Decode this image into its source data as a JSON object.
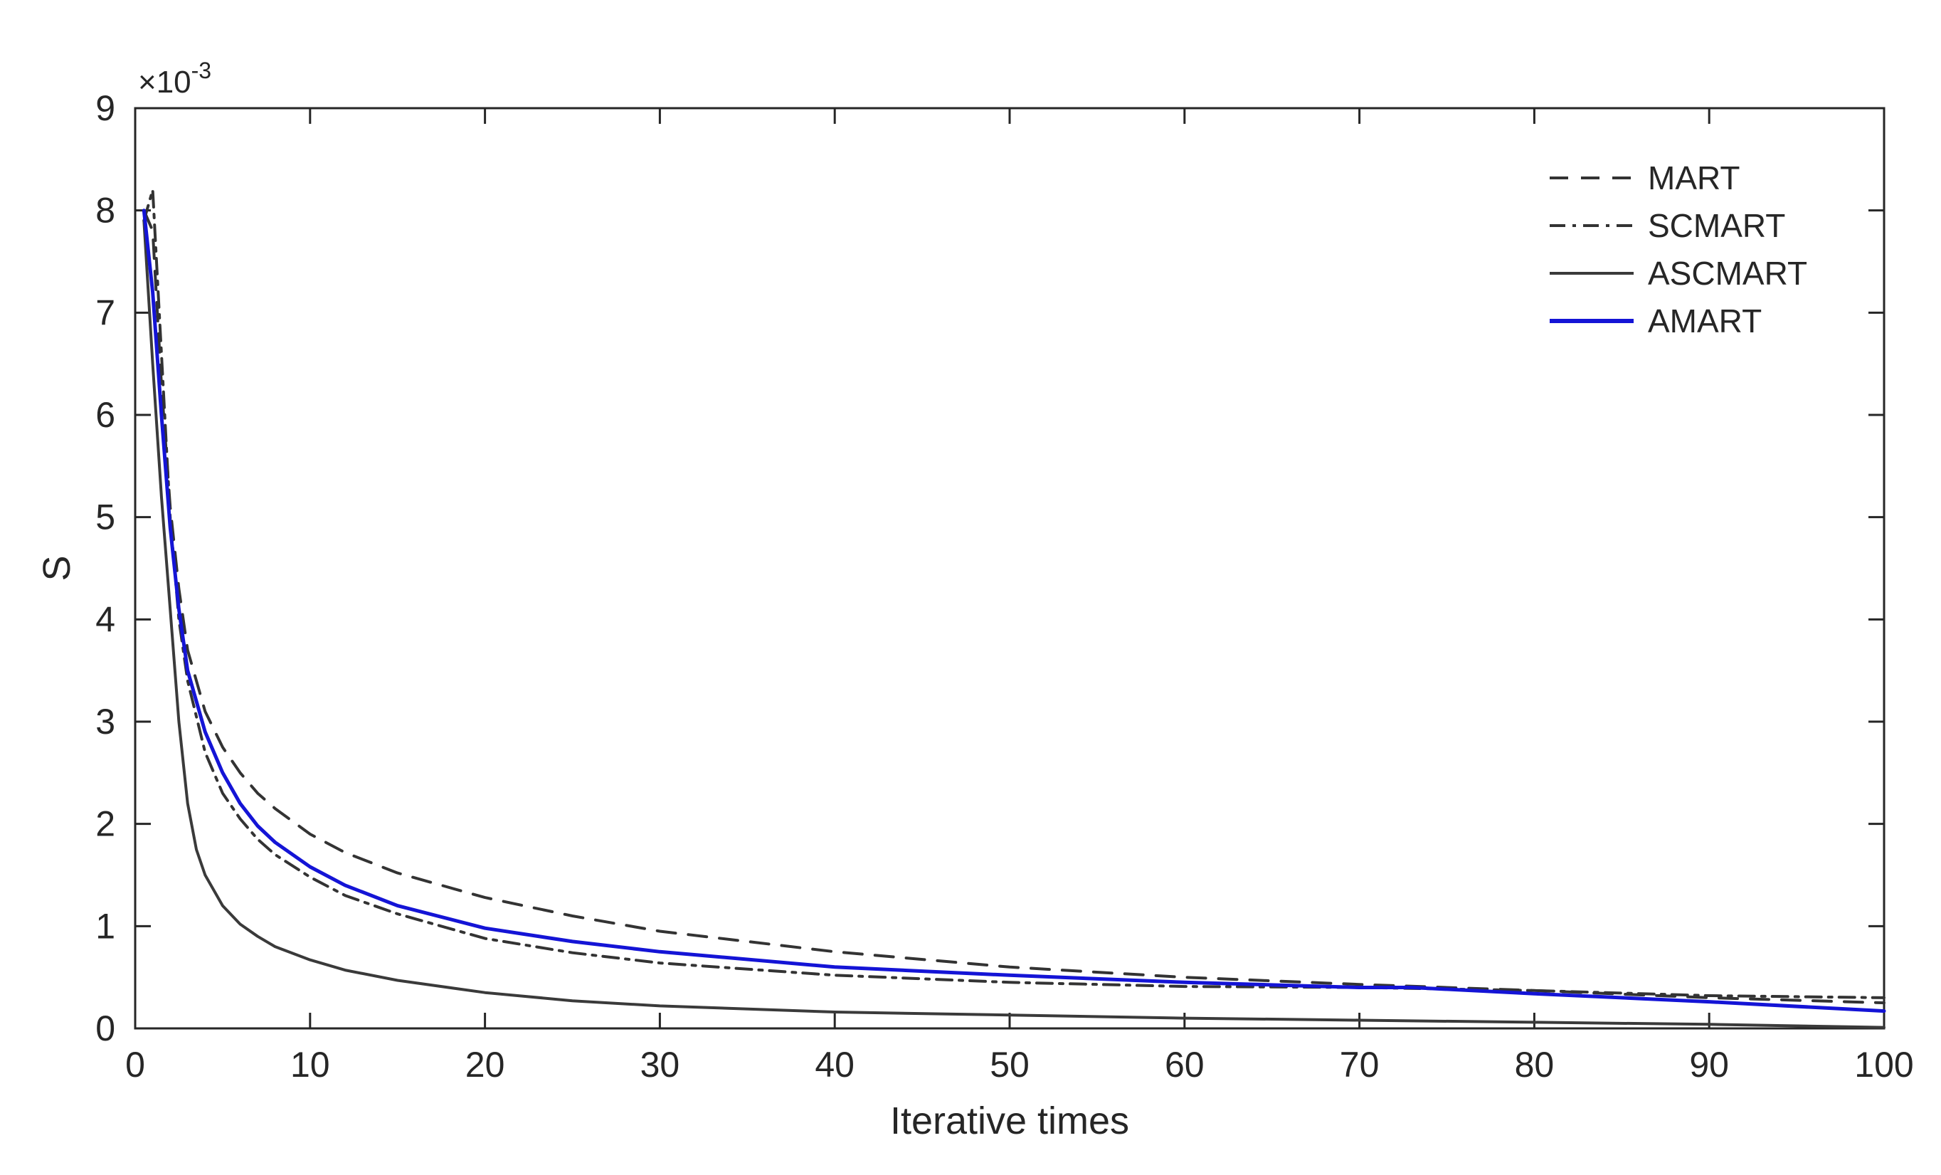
{
  "chart_data": {
    "type": "line",
    "xlabel": "Iterative times",
    "ylabel": "S",
    "y_exponent_label": {
      "base": "×10",
      "power": "-3"
    },
    "xlim": [
      0,
      100
    ],
    "ylim": [
      0,
      9
    ],
    "y_scale_factor": 0.001,
    "grid": false,
    "legend_position": "top-right",
    "xticks": [
      0,
      10,
      20,
      30,
      40,
      50,
      60,
      70,
      80,
      90,
      100
    ],
    "xtick_labels": [
      "0",
      "10",
      "20",
      "30",
      "40",
      "50",
      "60",
      "70",
      "80",
      "90",
      "100"
    ],
    "yticks": [
      0,
      1,
      2,
      3,
      4,
      5,
      6,
      7,
      8,
      9
    ],
    "ytick_labels": [
      "0",
      "1",
      "2",
      "3",
      "4",
      "5",
      "6",
      "7",
      "8",
      "9"
    ],
    "series": [
      {
        "name": "MART",
        "color": "#333333",
        "dash": "dashed",
        "x": [
          0.5,
          1,
          1.5,
          2,
          2.5,
          3,
          4,
          5,
          6,
          7,
          8,
          10,
          12,
          15,
          20,
          25,
          30,
          40,
          50,
          60,
          70,
          80,
          90,
          100
        ],
        "y": [
          8.0,
          7.8,
          6.3,
          5.1,
          4.3,
          3.7,
          3.1,
          2.75,
          2.5,
          2.3,
          2.15,
          1.9,
          1.72,
          1.52,
          1.28,
          1.1,
          0.95,
          0.75,
          0.6,
          0.5,
          0.43,
          0.37,
          0.3,
          0.25
        ]
      },
      {
        "name": "SCMART",
        "color": "#333333",
        "dash": "dashdot",
        "x": [
          0.5,
          1,
          1.5,
          2,
          2.5,
          3,
          4,
          5,
          6,
          7,
          8,
          10,
          12,
          15,
          20,
          25,
          30,
          40,
          50,
          60,
          70,
          80,
          90,
          100
        ],
        "y": [
          7.9,
          8.2,
          6.6,
          5.0,
          4.0,
          3.4,
          2.7,
          2.3,
          2.05,
          1.85,
          1.7,
          1.48,
          1.3,
          1.12,
          0.88,
          0.74,
          0.64,
          0.52,
          0.45,
          0.41,
          0.4,
          0.37,
          0.32,
          0.3
        ]
      },
      {
        "name": "ASCMART",
        "color": "#3a3a3a",
        "dash": "solid",
        "x": [
          0.5,
          1,
          1.5,
          2,
          2.5,
          3,
          3.5,
          4,
          5,
          6,
          7,
          8,
          10,
          12,
          15,
          20,
          25,
          30,
          40,
          50,
          60,
          70,
          80,
          90,
          100
        ],
        "y": [
          7.9,
          6.5,
          5.2,
          4.1,
          3.0,
          2.2,
          1.75,
          1.5,
          1.2,
          1.02,
          0.9,
          0.8,
          0.67,
          0.57,
          0.47,
          0.35,
          0.27,
          0.22,
          0.16,
          0.13,
          0.1,
          0.08,
          0.06,
          0.04,
          0.01
        ]
      },
      {
        "name": "AMART",
        "color": "#1414d6",
        "dash": "solid",
        "x": [
          0.5,
          1,
          1.5,
          2,
          2.5,
          3,
          4,
          5,
          6,
          7,
          8,
          10,
          12,
          15,
          20,
          25,
          30,
          40,
          50,
          60,
          70,
          73,
          80,
          90,
          100
        ],
        "y": [
          8.0,
          7.2,
          6.0,
          4.9,
          4.1,
          3.5,
          2.9,
          2.5,
          2.2,
          1.98,
          1.82,
          1.58,
          1.4,
          1.2,
          0.98,
          0.85,
          0.75,
          0.6,
          0.52,
          0.45,
          0.4,
          0.4,
          0.34,
          0.26,
          0.17
        ]
      }
    ]
  }
}
